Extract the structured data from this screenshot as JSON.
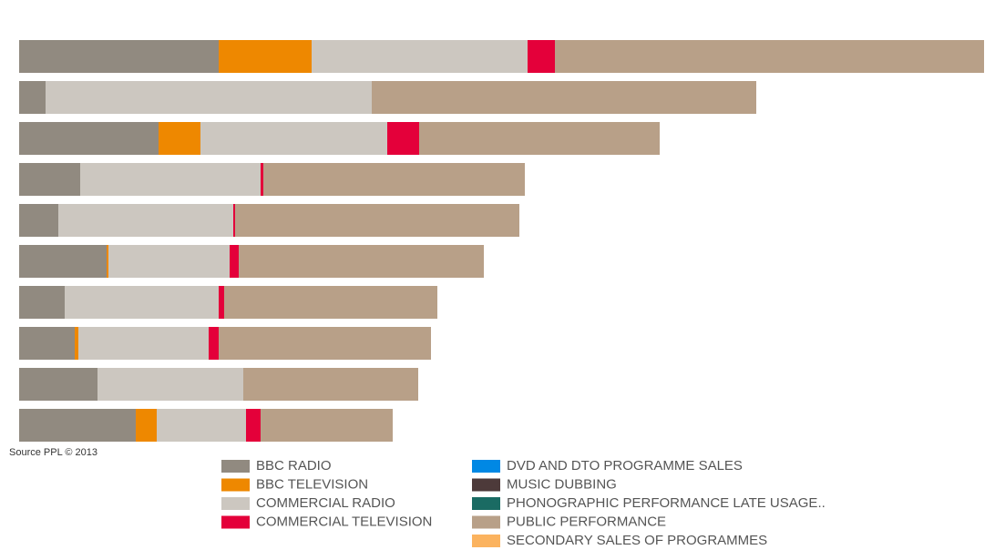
{
  "chart_data": {
    "type": "stacked-bar-horizontal",
    "source": "Source PPL © 2013",
    "categories": [
      null,
      null,
      null,
      null,
      null,
      null,
      null,
      null,
      null,
      null
    ],
    "xlim": [
      0,
      1059
    ],
    "series": [
      {
        "name": "BBC RADIO",
        "color": "#918a80",
        "values": [
          219,
          29,
          153,
          67,
          43,
          96,
          50,
          61,
          86,
          128
        ]
      },
      {
        "name": "BBC TELEVISION",
        "color": "#ee8800",
        "values": [
          102,
          0,
          46,
          0,
          0,
          2,
          0,
          4,
          0,
          23
        ]
      },
      {
        "name": "COMMERCIAL RADIO",
        "color": "#ccc7c0",
        "values": [
          237,
          358,
          205,
          198,
          192,
          133,
          169,
          143,
          160,
          98
        ]
      },
      {
        "name": "COMMERCIAL TELEVISION",
        "color": "#e4003a",
        "values": [
          30,
          0,
          35,
          3,
          2,
          10,
          6,
          11,
          0,
          16
        ]
      },
      {
        "name": "DVD AND DTO PROGRAMME SALES",
        "color": "#0088e4",
        "values": [
          0,
          0,
          0,
          0,
          0,
          0,
          0,
          0,
          0,
          0
        ]
      },
      {
        "name": "MUSIC DUBBING",
        "color": "#4d3a3a",
        "values": [
          0,
          0,
          0,
          0,
          0,
          0,
          0,
          0,
          0,
          0
        ]
      },
      {
        "name": "PHONOGRAPHIC PERFORMANCE LATE USAGE..",
        "color": "#1a6b63",
        "values": [
          0,
          0,
          0,
          0,
          0,
          0,
          0,
          0,
          0,
          0
        ]
      },
      {
        "name": "PUBLIC  PERFORMANCE",
        "color": "#b8a088",
        "values": [
          471,
          422,
          264,
          287,
          312,
          269,
          234,
          233,
          192,
          145
        ]
      },
      {
        "name": "SECONDARY SALES OF PROGRAMMES",
        "color": "#fbb35f",
        "values": [
          0,
          0,
          0,
          0,
          0,
          0,
          0,
          0,
          0,
          0
        ]
      }
    ]
  }
}
